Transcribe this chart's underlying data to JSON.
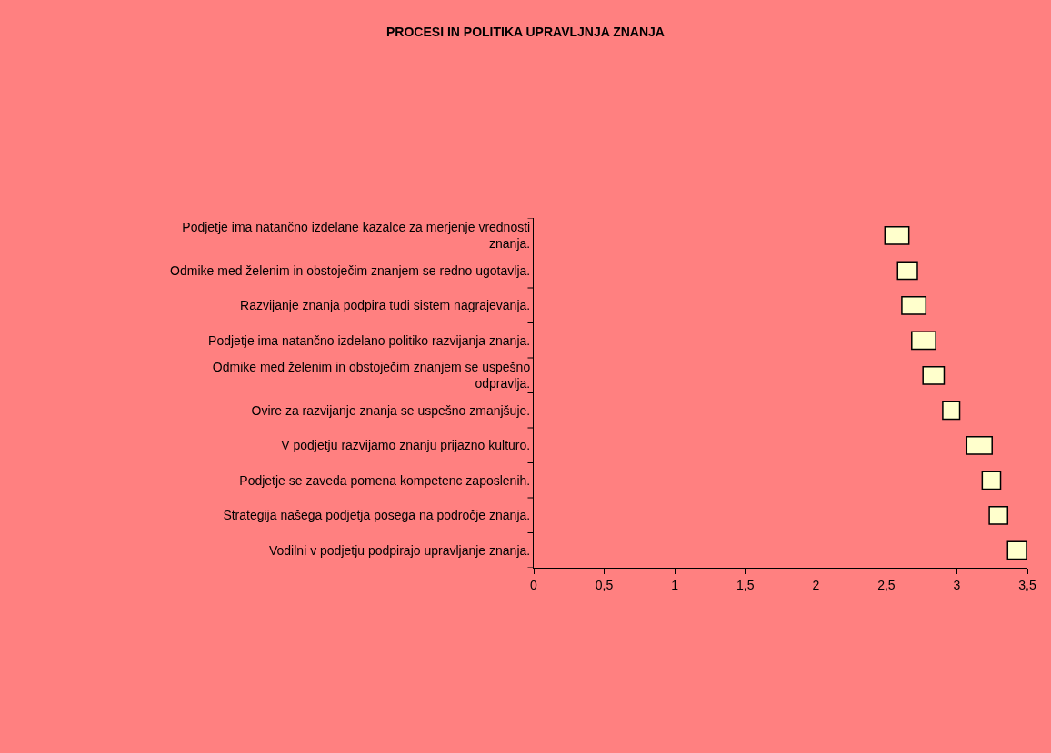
{
  "chart_data": {
    "type": "bar",
    "orientation": "horizontal",
    "title": "PROCESI IN POLITIKA UPRAVLJNJA ZNANJA",
    "categories": [
      "Podjetje ima natančno izdelane kazalce za merjenje vrednosti znanja.",
      "Odmike med želenim in obstoječim znanjem se redno ugotavlja.",
      "Razvijanje znanja podpira tudi sistem nagrajevanja.",
      "Podjetje ima natančno izdelano politiko razvijanja znanja.",
      "Odmike med želenim in obstoječim znanjem se uspešno odpravlja.",
      "Ovire za razvijanje znanja se uspešno zmanjšuje.",
      "V podjetju razvijamo znanju prijazno kulturo.",
      "Podjetje se zaveda pomena kompetenc zaposlenih.",
      "Strategija našega podjetja posega na področje znanja.",
      "Vodilni v podjetju podpirajo upravljanje znanja."
    ],
    "base": [
      2.49,
      2.58,
      2.61,
      2.68,
      2.76,
      2.9,
      3.07,
      3.18,
      3.23,
      3.36
    ],
    "values": [
      0.17,
      0.14,
      0.17,
      0.17,
      0.15,
      0.12,
      0.18,
      0.13,
      0.13,
      0.14
    ],
    "color": "#ffffcc",
    "xlim": [
      0,
      3.5
    ],
    "xticks": [
      {
        "value": 0,
        "label": "0"
      },
      {
        "value": 0.5,
        "label": "0,5"
      },
      {
        "value": 1,
        "label": "1"
      },
      {
        "value": 1.5,
        "label": "1,5"
      },
      {
        "value": 2,
        "label": "2"
      },
      {
        "value": 2.5,
        "label": "2,5"
      },
      {
        "value": 3,
        "label": "3"
      },
      {
        "value": 3.5,
        "label": "3,5"
      }
    ],
    "grid": false,
    "legend": false
  }
}
